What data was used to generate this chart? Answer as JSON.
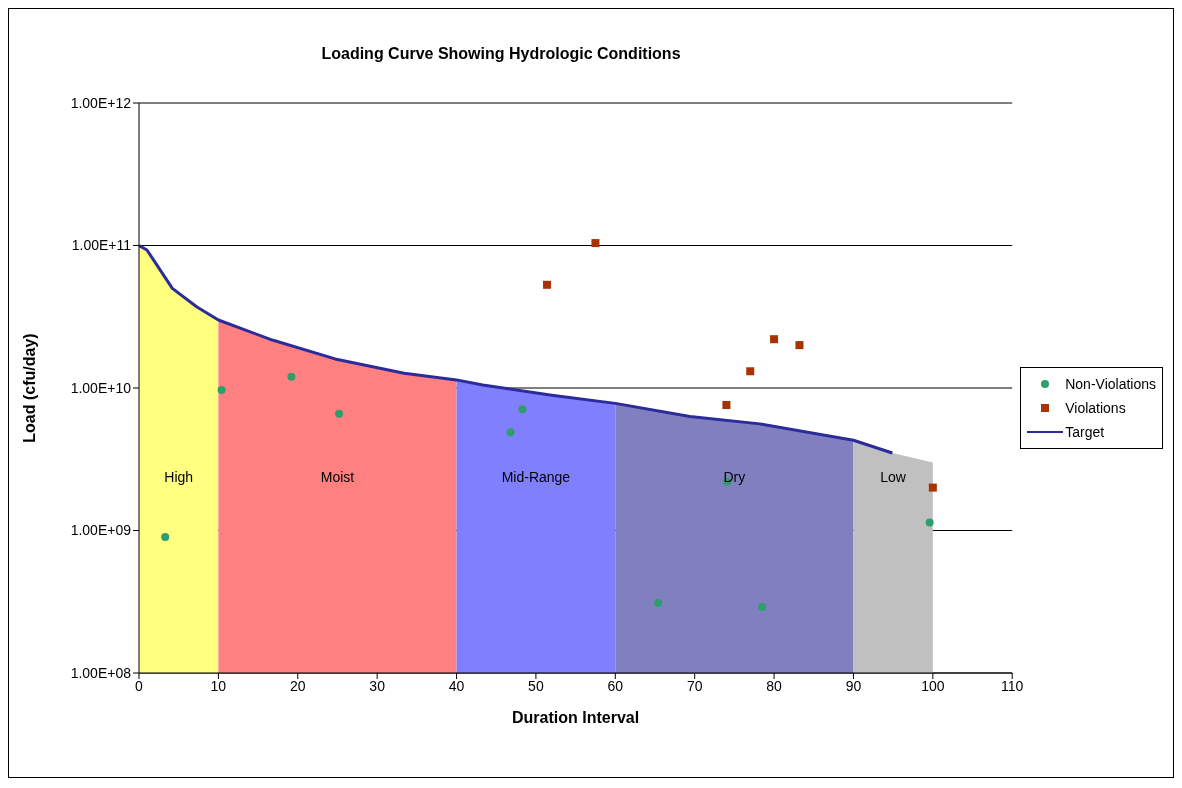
{
  "chart_data": {
    "type": "scatter",
    "title": "Loading Curve Showing Hydrologic Conditions",
    "xlabel": "Duration Interval",
    "ylabel": "Load (cfu/day)",
    "log": "y",
    "grid": "y",
    "legend": "right",
    "xlim": [
      0,
      110
    ],
    "xticks": [
      0,
      10,
      20,
      30,
      40,
      50,
      60,
      70,
      80,
      90,
      100,
      110
    ],
    "ylim": [
      100000000,
      1000000000000
    ],
    "yticks": [
      {
        "value": 100000000,
        "label": "1.00E+08"
      },
      {
        "value": 1000000000,
        "label": "1.00E+09"
      },
      {
        "value": 10000000000,
        "label": "1.00E+10"
      },
      {
        "value": 100000000000,
        "label": "1.00E+11"
      },
      {
        "value": 1000000000000,
        "label": "1.00E+12"
      }
    ],
    "series": [
      {
        "type": "area",
        "color": "#ffff80",
        "x": [
          0,
          1,
          4.2,
          7.3,
          10
        ],
        "values": [
          100000000000,
          93000000000,
          50000000000,
          37000000000,
          30000000000
        ]
      },
      {
        "type": "area",
        "color": "#ff8080",
        "x": [
          10,
          16.8,
          24.7,
          33.4,
          40
        ],
        "values": [
          30000000000,
          21700000000,
          16000000000,
          12700000000,
          11400000000
        ]
      },
      {
        "type": "area",
        "color": "#8080ff",
        "x": [
          40,
          43.3,
          52,
          60
        ],
        "values": [
          11400000000,
          10500000000,
          8900000000,
          7800000000
        ]
      },
      {
        "type": "area",
        "color": "#8080c0",
        "x": [
          60,
          69.4,
          78.2,
          90
        ],
        "values": [
          7800000000,
          6300000000,
          5600000000,
          4300000000
        ]
      },
      {
        "type": "area",
        "color": "#c0c0c0",
        "x": [
          90,
          94.9,
          100
        ],
        "values": [
          4300000000,
          3500000000,
          3000000000
        ]
      },
      {
        "name": "Non-Violations",
        "color": "#2e9e6a",
        "marker": "circle",
        "x": [
          3.3,
          10.4,
          19.2,
          25.2,
          46.8,
          48.3,
          65.4,
          74.1,
          78.5,
          99.6
        ],
        "values": [
          900000000,
          9700000000,
          12000000000,
          6600000000,
          4900000000,
          7100000000,
          310000000,
          2200000000,
          290000000,
          1140000000
        ]
      },
      {
        "name": "Violations",
        "color": "#a83200",
        "marker": "square",
        "x": [
          51.4,
          57.5,
          74.0,
          77.0,
          80.0,
          83.2,
          100
        ],
        "values": [
          53000000000,
          104000000000,
          7600000000,
          13100000000,
          22000000000,
          20000000000,
          2000000000
        ]
      },
      {
        "type": "line",
        "name": "Target",
        "color": "#2b2b9c",
        "marker": "none",
        "line_style": "solid",
        "x": [
          0,
          1,
          4.2,
          7.3,
          10,
          16.8,
          24.7,
          33.4,
          40,
          43.3,
          52,
          60,
          69.4,
          78.2,
          90,
          94.9
        ],
        "values": [
          100000000000,
          93000000000,
          50000000000,
          37000000000,
          30000000000,
          21700000000,
          16000000000,
          12700000000,
          11400000000,
          10500000000,
          8900000000,
          7800000000,
          6300000000,
          5600000000,
          4300000000,
          3500000000
        ]
      }
    ],
    "annotations": [
      "High",
      "Moist",
      "Mid-Range",
      "Dry",
      "Low"
    ]
  }
}
